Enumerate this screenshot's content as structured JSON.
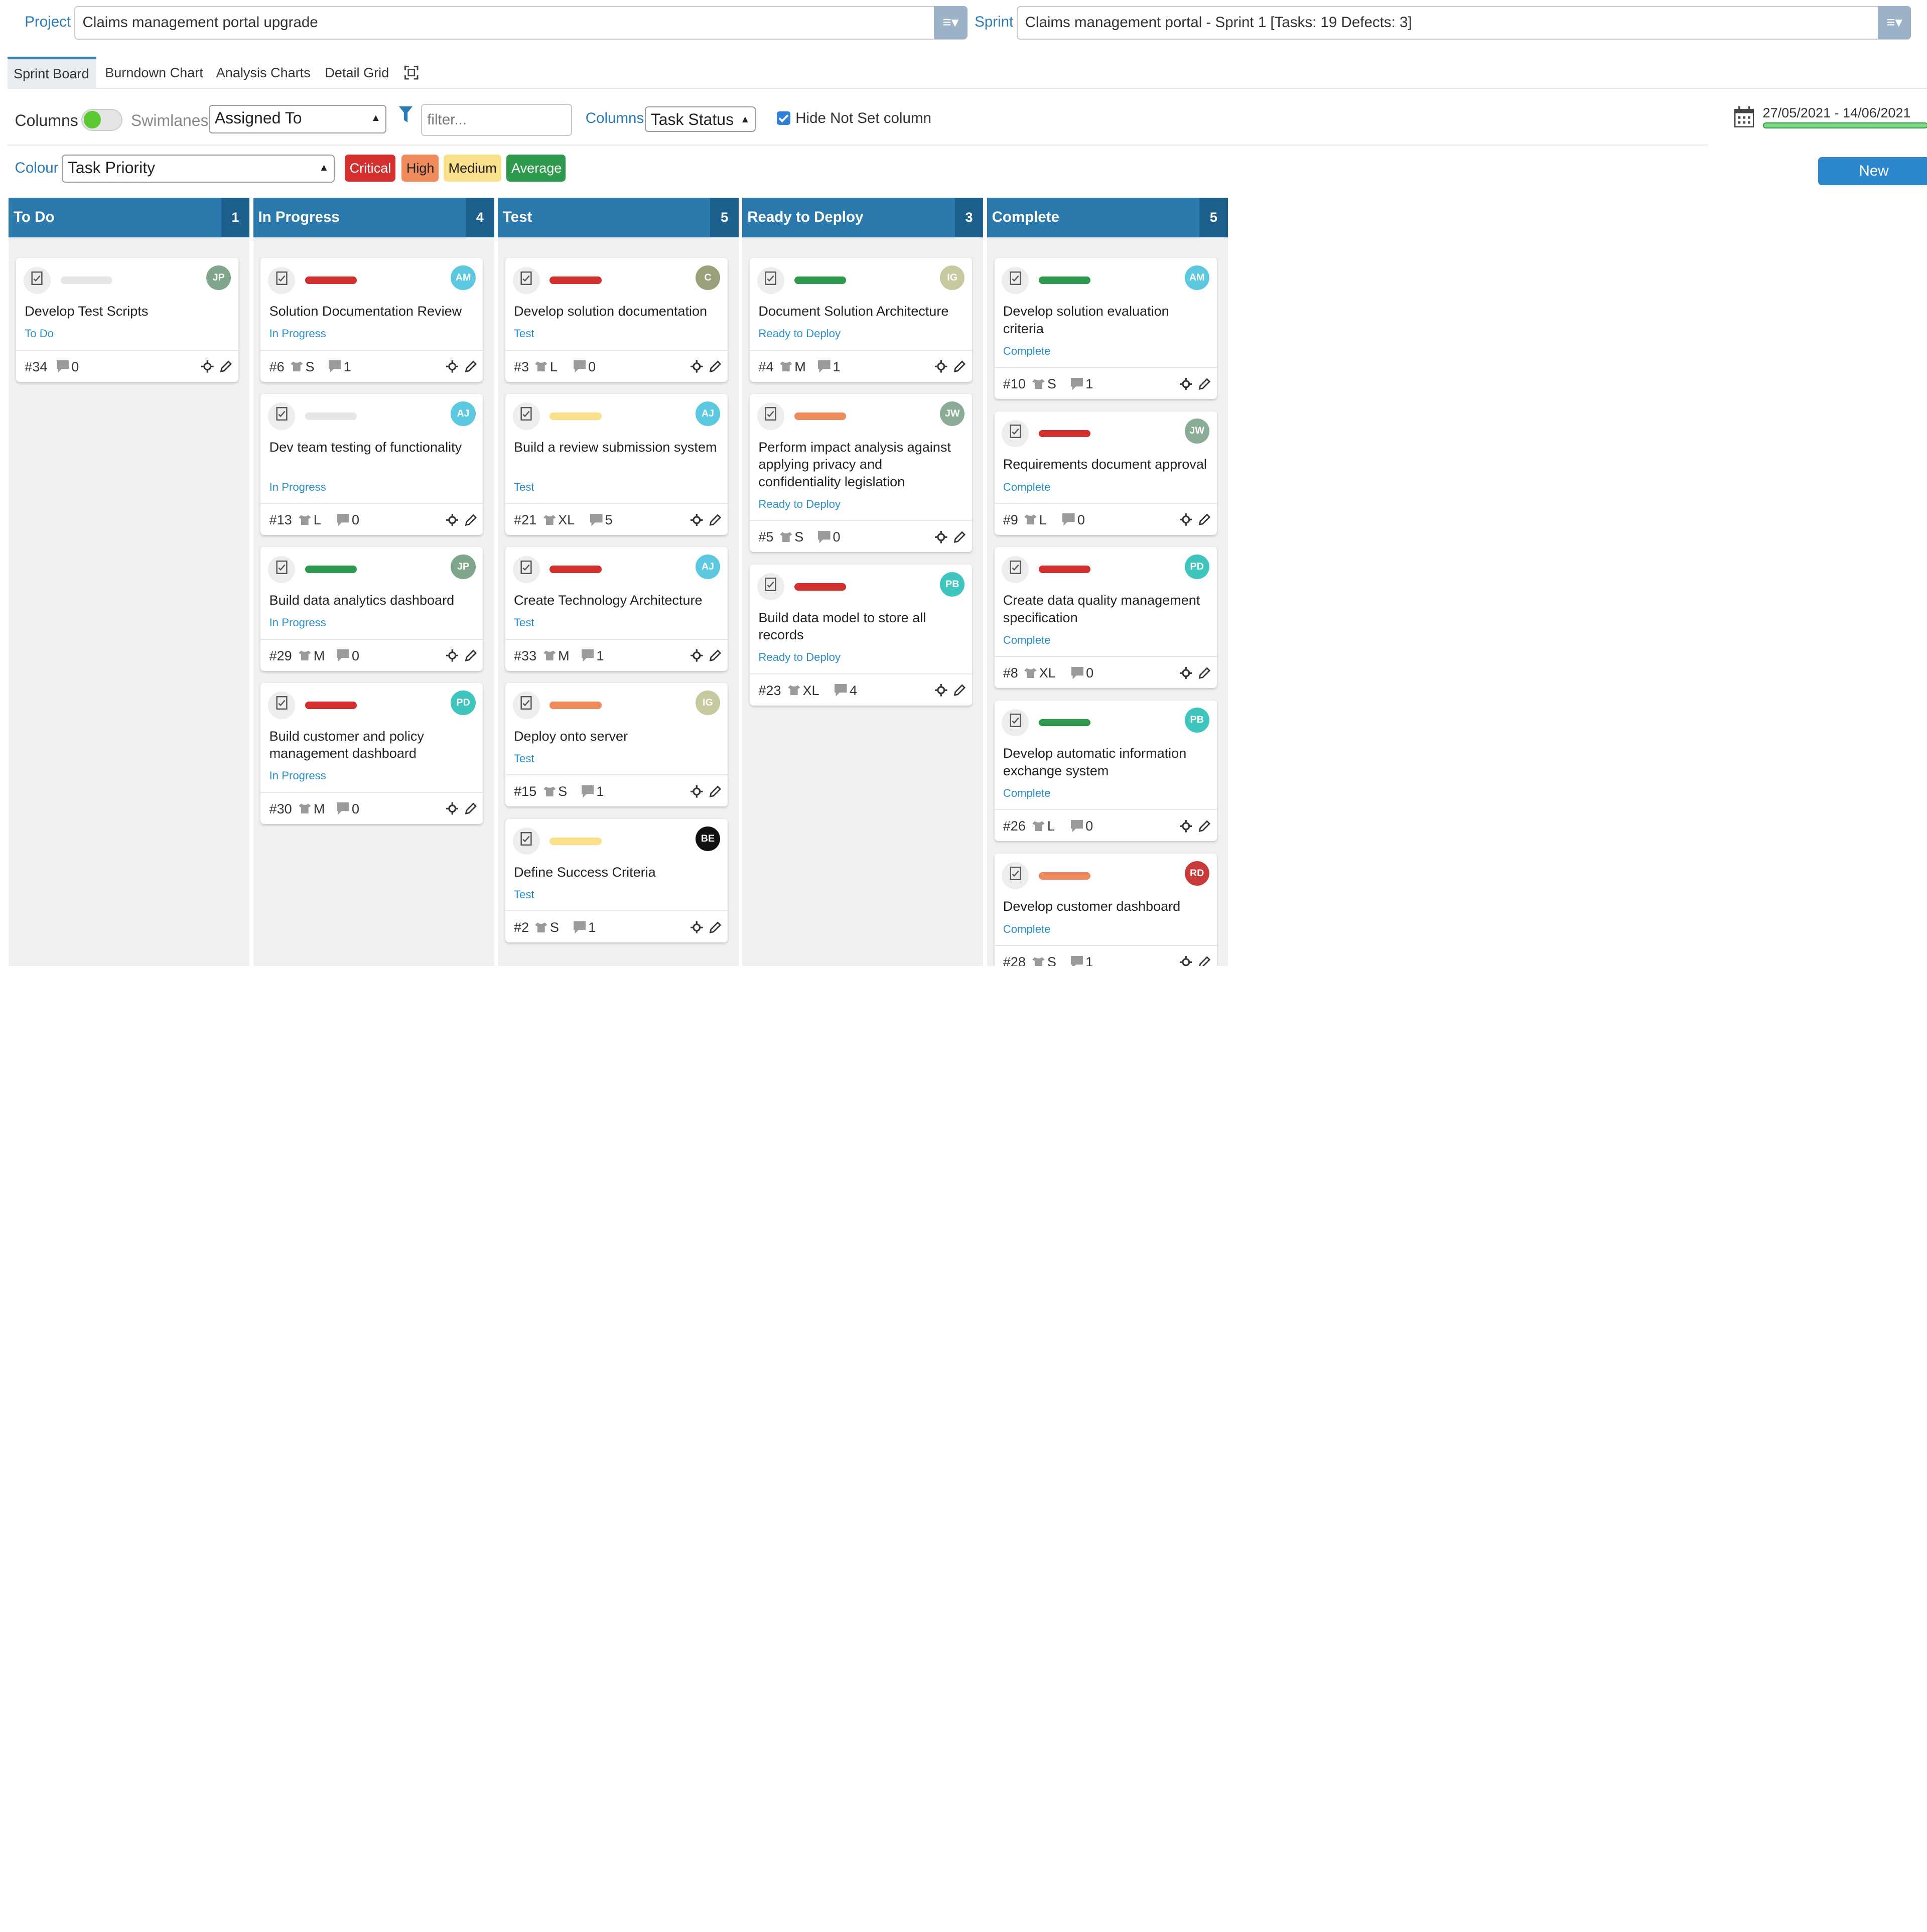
{
  "header": {
    "project_label": "Project",
    "project_value": "Claims management portal upgrade",
    "sprint_label": "Sprint",
    "sprint_value": "Claims management portal - Sprint 1 [Tasks: 19 Defects: 3]",
    "menu_glyph": "≡▾"
  },
  "tabs": [
    "Sprint Board",
    "Burndown Chart",
    "Analysis Charts",
    "Detail Grid"
  ],
  "toolbar": {
    "columns_label": "Columns",
    "swimlanes_label": "Swimlanes",
    "swimlanes_value": "Assigned To",
    "filter_placeholder": "filter...",
    "columns_select_label": "Columns",
    "columns_select_value": "Task Status",
    "hide_not_set_label": "Hide Not Set column",
    "date_range": "27/05/2021 - 14/06/2021",
    "colour_label": "Colour",
    "colour_value": "Task Priority",
    "new_label": "New"
  },
  "legend": [
    {
      "label": "Critical",
      "color": "#d32f2f"
    },
    {
      "label": "High",
      "color": "#ef8a5c"
    },
    {
      "label": "Medium",
      "color": "#fbe08c"
    },
    {
      "label": "Average",
      "color": "#2e9a4e"
    }
  ],
  "columns": [
    {
      "name": "To Do",
      "count": "1",
      "cards": [
        {
          "title": "Develop Test Scripts",
          "status": "To Do",
          "id": "#34",
          "size": "",
          "comments": "0",
          "priority": "none",
          "initials": "JP",
          "avatar_color": "#7fa58c"
        }
      ]
    },
    {
      "name": "In Progress",
      "count": "4",
      "cards": [
        {
          "title": "Solution Documentation Review",
          "status": "In Progress",
          "id": "#6",
          "size": "S",
          "comments": "1",
          "priority": "critical",
          "initials": "AM",
          "avatar_color": "#5bc8e0"
        },
        {
          "title": "Dev team testing of functionality",
          "status": "In Progress",
          "id": "#13",
          "size": "L",
          "comments": "0",
          "priority": "none",
          "initials": "AJ",
          "avatar_color": "#5bc8e0"
        },
        {
          "title": "Build data analytics dashboard",
          "status": "In Progress",
          "id": "#29",
          "size": "M",
          "comments": "0",
          "priority": "average",
          "initials": "JP",
          "avatar_color": "#7fa58c"
        },
        {
          "title": "Build customer and policy management dashboard",
          "status": "In Progress",
          "id": "#30",
          "size": "M",
          "comments": "0",
          "priority": "critical",
          "initials": "PD",
          "avatar_color": "#3ec5be"
        }
      ]
    },
    {
      "name": "Test",
      "count": "5",
      "cards": [
        {
          "title": "Develop solution documentation",
          "status": "Test",
          "id": "#3",
          "size": "L",
          "comments": "0",
          "priority": "critical",
          "initials": "C",
          "avatar_color": "#9aa07a"
        },
        {
          "title": "Build a review submission system",
          "status": "Test",
          "id": "#21",
          "size": "XL",
          "comments": "5",
          "priority": "medium",
          "initials": "AJ",
          "avatar_color": "#5bc8e0"
        },
        {
          "title": "Create Technology Architecture",
          "status": "Test",
          "id": "#33",
          "size": "M",
          "comments": "1",
          "priority": "critical",
          "initials": "AJ",
          "avatar_color": "#5bc8e0"
        },
        {
          "title": "Deploy onto server",
          "status": "Test",
          "id": "#15",
          "size": "S",
          "comments": "1",
          "priority": "high",
          "initials": "IG",
          "avatar_color": "#c8c89e"
        },
        {
          "title": "Define Success Criteria",
          "status": "Test",
          "id": "#2",
          "size": "S",
          "comments": "1",
          "priority": "medium",
          "initials": "BE",
          "avatar_color": "#111111"
        }
      ]
    },
    {
      "name": "Ready to Deploy",
      "count": "3",
      "cards": [
        {
          "title": "Document Solution Architecture",
          "status": "Ready to Deploy",
          "id": "#4",
          "size": "M",
          "comments": "1",
          "priority": "average",
          "initials": "IG",
          "avatar_color": "#c8c89e"
        },
        {
          "title": "Perform impact analysis against applying privacy and confidentiality legislation",
          "status": "Ready to Deploy",
          "id": "#5",
          "size": "S",
          "comments": "0",
          "priority": "high",
          "initials": "JW",
          "avatar_color": "#8aab96"
        },
        {
          "title": "Build data model to store all records",
          "status": "Ready to Deploy",
          "id": "#23",
          "size": "XL",
          "comments": "4",
          "priority": "critical",
          "initials": "PB",
          "avatar_color": "#3ec5be"
        }
      ]
    },
    {
      "name": "Complete",
      "count": "5",
      "cards": [
        {
          "title": "Develop solution evaluation criteria",
          "status": "Complete",
          "id": "#10",
          "size": "S",
          "comments": "1",
          "priority": "average",
          "initials": "AM",
          "avatar_color": "#5bc8e0"
        },
        {
          "title": "Requirements document approval",
          "status": "Complete",
          "id": "#9",
          "size": "L",
          "comments": "0",
          "priority": "critical",
          "initials": "JW",
          "avatar_color": "#8aab96"
        },
        {
          "title": "Create data quality management specification",
          "status": "Complete",
          "id": "#8",
          "size": "XL",
          "comments": "0",
          "priority": "critical",
          "initials": "PD",
          "avatar_color": "#3ec5be"
        },
        {
          "title": "Develop automatic information exchange system",
          "status": "Complete",
          "id": "#26",
          "size": "L",
          "comments": "0",
          "priority": "average",
          "initials": "PB",
          "avatar_color": "#3ec5be"
        },
        {
          "title": "Develop customer dashboard",
          "status": "Complete",
          "id": "#28",
          "size": "S",
          "comments": "1",
          "priority": "high",
          "initials": "RD",
          "avatar_color": "#c93a3a"
        }
      ]
    }
  ],
  "priority_colors": {
    "critical": "#d32f2f",
    "high": "#ef8a5c",
    "medium": "#fbe08c",
    "average": "#2e9a4e",
    "none": "#e6e6e6"
  }
}
